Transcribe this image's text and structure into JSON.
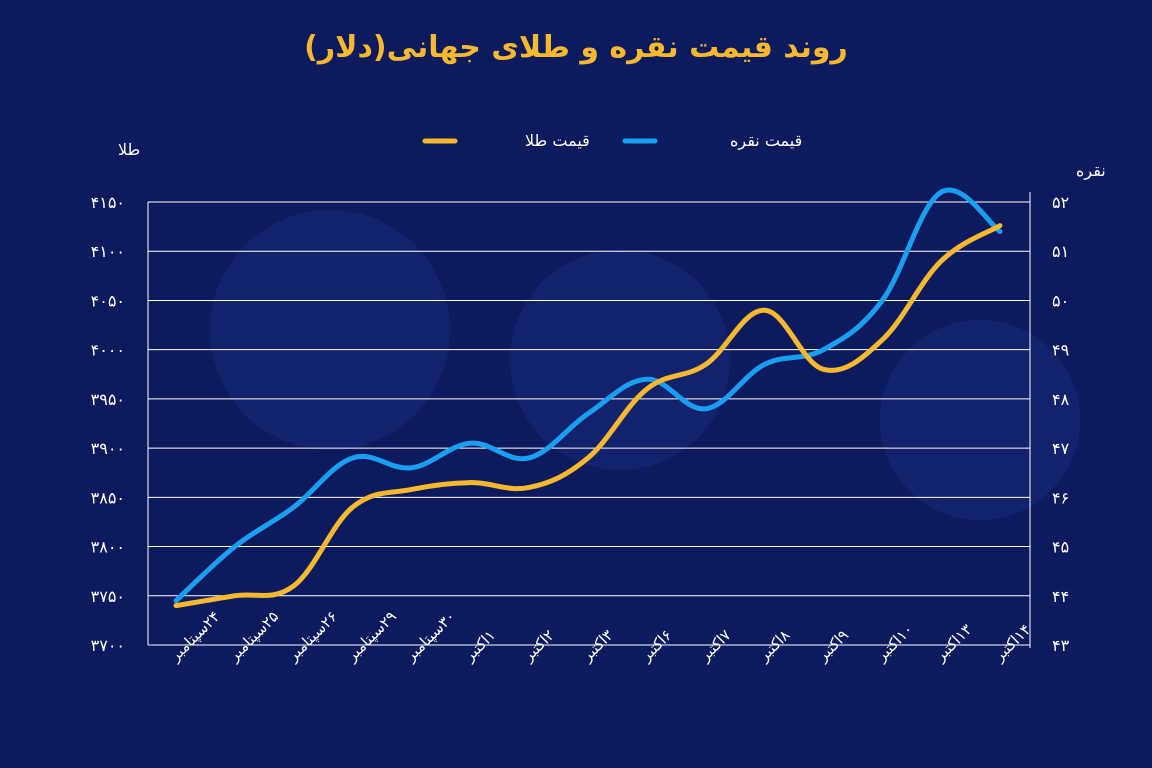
{
  "chart_data": {
    "type": "line",
    "title": "روند قیمت نقره و طلای جهانی(دلار)",
    "categories": [
      "۲۴سپتامبر",
      "۲۵سپتامبر",
      "۲۶سپتامبر",
      "۲۹سپتامبر",
      "۳۰سپتامبر",
      "۱اکتبر",
      "۲اکتبر",
      "۳اکتبر",
      "۶اکتبر",
      "۷اکتبر",
      "۸اکتبر",
      "۹اکتبر",
      "۱۰اکتبر",
      "۱۳اکتبر",
      "۱۴اکتبر"
    ],
    "y_left": {
      "label": "طلا",
      "ticks": [
        "۳۷۰۰",
        "۳۷۵۰",
        "۳۸۰۰",
        "۳۸۵۰",
        "۳۹۰۰",
        "۳۹۵۰",
        "۴۰۰۰",
        "۴۰۵۰",
        "۴۱۰۰",
        "۴۱۵۰"
      ],
      "ylim": [
        3700,
        4150
      ]
    },
    "y_right": {
      "label": "نقره",
      "ticks": [
        "۴۳",
        "۴۴",
        "۴۵",
        "۴۶",
        "۴۷",
        "۴۸",
        "۴۹",
        "۵۰",
        "۵۱",
        "۵۲"
      ],
      "ylim": [
        43,
        52
      ]
    },
    "series": [
      {
        "name": "قیمت طلا",
        "axis": "left",
        "color": "#f5b82e",
        "values": [
          3740,
          3750,
          3760,
          3840,
          3858,
          3865,
          3860,
          3890,
          3960,
          3985,
          4040,
          3980,
          4010,
          4090,
          4126
        ]
      },
      {
        "name": "قیمت نقره",
        "axis": "right",
        "color": "#1a9ff0",
        "values": [
          43.9,
          45.0,
          45.8,
          46.8,
          46.6,
          47.1,
          46.8,
          47.7,
          48.4,
          47.8,
          48.7,
          49.0,
          50.0,
          52.2,
          51.4
        ]
      }
    ],
    "grid": true,
    "legend": "top-center"
  }
}
